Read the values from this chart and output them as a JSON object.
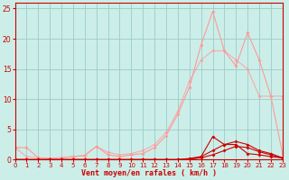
{
  "xlabel": "Vent moyen/en rafales ( km/h )",
  "bg_color": "#cceee8",
  "grid_color": "#99cccc",
  "xlim": [
    0,
    23
  ],
  "ylim": [
    0,
    26
  ],
  "yticks": [
    0,
    5,
    10,
    15,
    20,
    25
  ],
  "xticks": [
    0,
    1,
    2,
    3,
    4,
    5,
    6,
    7,
    8,
    9,
    10,
    11,
    12,
    13,
    14,
    15,
    16,
    17,
    18,
    19,
    20,
    21,
    22,
    23
  ],
  "line_pink1_x": [
    0,
    1,
    2,
    3,
    4,
    5,
    6,
    7,
    8,
    9,
    10,
    11,
    12,
    13,
    14,
    15,
    16,
    17,
    18,
    19,
    20,
    21,
    22,
    23
  ],
  "line_pink1_y": [
    2.0,
    2.0,
    0.3,
    0.2,
    0.3,
    0.5,
    0.7,
    2.2,
    0.8,
    0.5,
    0.8,
    1.0,
    2.0,
    4.0,
    7.5,
    12.0,
    19.0,
    24.5,
    18.0,
    15.5,
    21.0,
    16.5,
    10.5,
    1.0
  ],
  "line_pink2_x": [
    0,
    1,
    2,
    3,
    4,
    5,
    6,
    7,
    8,
    9,
    10,
    11,
    12,
    13,
    14,
    15,
    16,
    17,
    18,
    19,
    20,
    21,
    22,
    23
  ],
  "line_pink2_y": [
    2.0,
    0.5,
    0.3,
    0.2,
    0.3,
    0.5,
    0.7,
    2.2,
    1.2,
    0.8,
    1.0,
    1.5,
    2.5,
    4.5,
    8.0,
    13.0,
    16.5,
    18.0,
    18.0,
    16.5,
    15.0,
    10.5,
    10.5,
    10.5
  ],
  "line_dark1_x": [
    0,
    1,
    2,
    3,
    4,
    5,
    6,
    7,
    8,
    9,
    10,
    11,
    12,
    13,
    14,
    15,
    16,
    17,
    18,
    19,
    20,
    21,
    22,
    23
  ],
  "line_dark1_y": [
    0.0,
    0.0,
    0.0,
    0.0,
    0.0,
    0.0,
    0.0,
    0.0,
    0.0,
    0.0,
    0.0,
    0.0,
    0.0,
    0.0,
    0.0,
    0.0,
    0.5,
    3.8,
    2.5,
    2.5,
    1.0,
    0.8,
    0.5,
    0.3
  ],
  "line_dark2_x": [
    0,
    1,
    2,
    3,
    4,
    5,
    6,
    7,
    8,
    9,
    10,
    11,
    12,
    13,
    14,
    15,
    16,
    17,
    18,
    19,
    20,
    21,
    22,
    23
  ],
  "line_dark2_y": [
    0.0,
    0.0,
    0.0,
    0.0,
    0.0,
    0.0,
    0.0,
    0.0,
    0.0,
    0.0,
    0.0,
    0.0,
    0.0,
    0.0,
    0.0,
    0.2,
    0.5,
    1.5,
    2.5,
    3.0,
    2.5,
    1.5,
    1.0,
    0.3
  ],
  "line_dark3_x": [
    0,
    1,
    2,
    3,
    4,
    5,
    6,
    7,
    8,
    9,
    10,
    11,
    12,
    13,
    14,
    15,
    16,
    17,
    18,
    19,
    20,
    21,
    22,
    23
  ],
  "line_dark3_y": [
    0.0,
    0.0,
    0.0,
    0.0,
    0.0,
    0.0,
    0.0,
    0.0,
    0.0,
    0.0,
    0.0,
    0.0,
    0.0,
    0.0,
    0.0,
    0.1,
    0.3,
    0.8,
    1.5,
    2.2,
    2.0,
    1.3,
    0.8,
    0.2
  ],
  "color_light": "#ff9999",
  "color_dark": "#cc0000",
  "markersize": 2.0,
  "linewidth": 0.8
}
